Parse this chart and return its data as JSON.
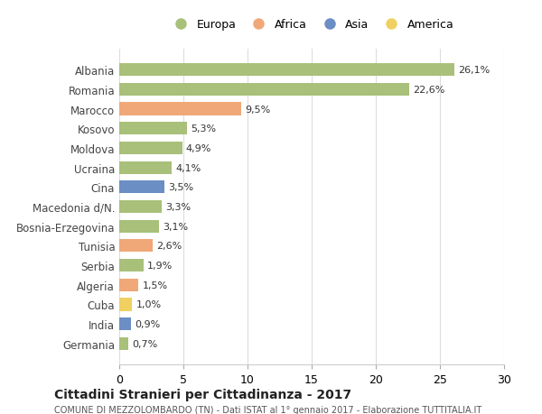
{
  "countries": [
    "Albania",
    "Romania",
    "Marocco",
    "Kosovo",
    "Moldova",
    "Ucraina",
    "Cina",
    "Macedonia d/N.",
    "Bosnia-Erzegovina",
    "Tunisia",
    "Serbia",
    "Algeria",
    "Cuba",
    "India",
    "Germania"
  ],
  "values": [
    26.1,
    22.6,
    9.5,
    5.3,
    4.9,
    4.1,
    3.5,
    3.3,
    3.1,
    2.6,
    1.9,
    1.5,
    1.0,
    0.9,
    0.7
  ],
  "labels": [
    "26,1%",
    "22,6%",
    "9,5%",
    "5,3%",
    "4,9%",
    "4,1%",
    "3,5%",
    "3,3%",
    "3,1%",
    "2,6%",
    "1,9%",
    "1,5%",
    "1,0%",
    "0,9%",
    "0,7%"
  ],
  "continents": [
    "Europa",
    "Europa",
    "Africa",
    "Europa",
    "Europa",
    "Europa",
    "Asia",
    "Europa",
    "Europa",
    "Africa",
    "Europa",
    "Africa",
    "America",
    "Asia",
    "Europa"
  ],
  "colors": {
    "Europa": "#a8c07a",
    "Africa": "#f0a878",
    "Asia": "#6b8ec4",
    "America": "#f0d060"
  },
  "legend_order": [
    "Europa",
    "Africa",
    "Asia",
    "America"
  ],
  "xlim": [
    0,
    30
  ],
  "xticks": [
    0,
    5,
    10,
    15,
    20,
    25,
    30
  ],
  "title": "Cittadini Stranieri per Cittadinanza - 2017",
  "subtitle": "COMUNE DI MEZZOLOMBARDO (TN) - Dati ISTAT al 1° gennaio 2017 - Elaborazione TUTTITALIA.IT",
  "background_color": "#ffffff",
  "grid_color": "#dddddd",
  "bar_height": 0.65
}
